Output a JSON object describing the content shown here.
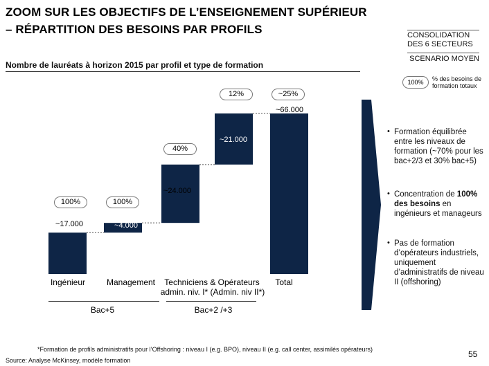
{
  "title": {
    "line1": "ZOOM SUR LES OBJECTIFS DE L’ENSEIGNEMENT SUPÉRIEUR",
    "line2": "– RÉPARTITION DES BESOINS PAR PROFILS"
  },
  "tags": {
    "consolidation_line1": "CONSOLIDATION",
    "consolidation_line2": "DES 6 SECTEURS",
    "scenario": "SCENARIO MOYEN"
  },
  "chart_header": "Nombre de lauréats à horizon 2015 par profil et type de formation",
  "legend": {
    "pill": "100%",
    "text": "% des besoins de formation totaux"
  },
  "chart_data": {
    "type": "bar",
    "title": "Nombre de lauréats à horizon 2015 par profil et type de formation",
    "categories": [
      "Ingénieur",
      "Management",
      "Techniciens & Opérateurs admin. niv. I* (Admin. niv II*)",
      "Total"
    ],
    "bars": [
      {
        "id": "ingenieur",
        "label": "~17.000",
        "value": 17000,
        "base": 0,
        "share": "100%",
        "style": "solid"
      },
      {
        "id": "management",
        "label": "~4.000",
        "value": 4000,
        "base": 17000,
        "share": "100%",
        "style": "solid"
      },
      {
        "id": "tech-lower",
        "label": "~24.000",
        "value": 24000,
        "base": 21000,
        "share": "40%",
        "style": "solid"
      },
      {
        "id": "tech-upper",
        "label": "~21.000",
        "value": 21000,
        "base": 45000,
        "share": "12%",
        "style": "solid"
      },
      {
        "id": "total",
        "label": "~66.000",
        "value": 66000,
        "base": 0,
        "share": "~25%",
        "style": "solid"
      }
    ],
    "groups": [
      {
        "label": "Bac+5"
      },
      {
        "label": "Bac+2 /+3"
      }
    ],
    "ylim": [
      0,
      66000
    ]
  },
  "categories": {
    "ingenieur": "Ingénieur",
    "management": "Management",
    "techniciens_line1": "Techniciens & Opérateurs",
    "techniciens_line2": "admin. niv. I*   (Admin. niv II*)",
    "total": "Total"
  },
  "bullets": [
    {
      "text": "Formation équilibrée entre les niveaux de formation (~70% pour les bac+2/3 et 30% bac+5)"
    },
    {
      "pre": "Concentration de ",
      "bold": "100% des besoins",
      "post": " en ingénieurs et manageurs"
    },
    {
      "text": "Pas de formation d’opérateurs industriels, uniquement d’administratifs de niveau II (offshoring)"
    }
  ],
  "footnote": "*Formation de profils administratifs pour l’Offshoring : niveau I (e.g. BPO), niveau II (e.g. call center, assimilés opérateurs)",
  "source": "Source:   Analyse McKinsey, modèle formation",
  "page_number": "55",
  "colors": {
    "bar": "#0e2546",
    "arrow": "#0e2546"
  }
}
